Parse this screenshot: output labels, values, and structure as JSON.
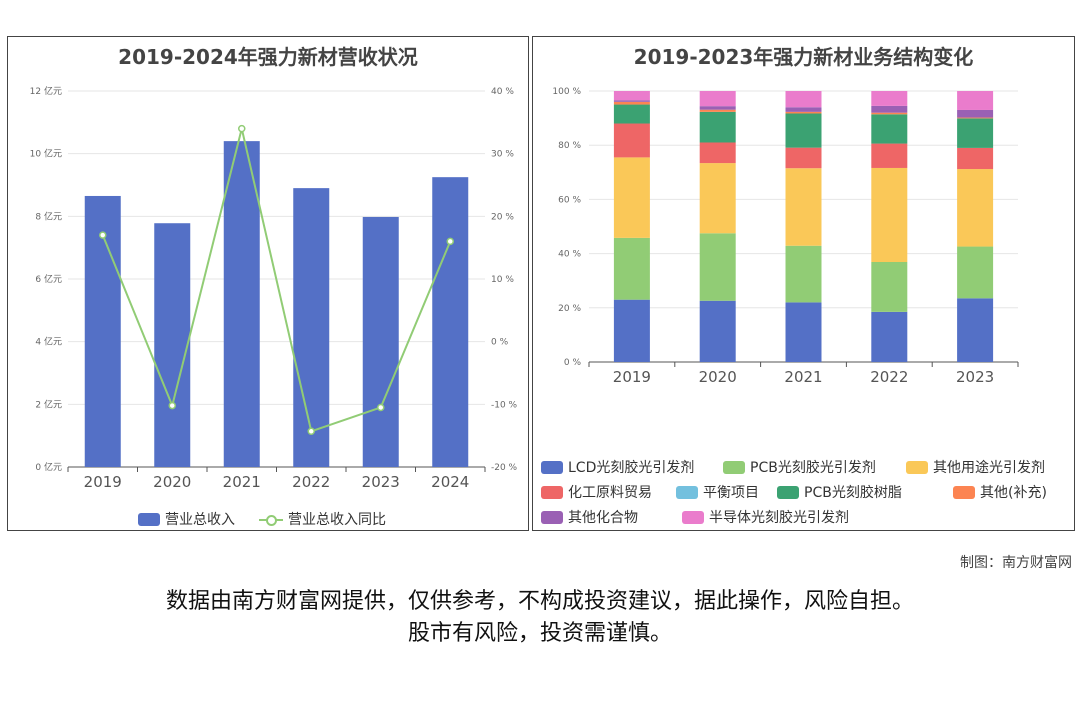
{
  "left_panel": {
    "title": "2019-2024年强力新材营收状况",
    "legend": {
      "bar": "营业总收入",
      "line": "营业总收入同比"
    }
  },
  "right_panel": {
    "title": "2019-2023年强力新材业务结构变化"
  },
  "credit": "制图：南方财富网",
  "disclaimer_line1": "数据由南方财富网提供，仅供参考，不构成投资建议，据此操作，风险自担。",
  "disclaimer_line2": "股市有风险，投资需谨慎。",
  "colors": {
    "bar": "#5470c6",
    "line": "#91cc75"
  },
  "chart_data": [
    {
      "type": "bar",
      "title": "2019-2024年强力新材营收状况",
      "categories": [
        "2019",
        "2020",
        "2021",
        "2022",
        "2023",
        "2024"
      ],
      "y_ticks": [
        "0 亿元",
        "2 亿元",
        "4 亿元",
        "6 亿元",
        "8 亿元",
        "10 亿元",
        "12 亿元"
      ],
      "y2_ticks": [
        "-20 %",
        "-10 %",
        "0 %",
        "10 %",
        "20 %",
        "30 %",
        "40 %"
      ],
      "ylim": [
        0,
        12
      ],
      "y2lim": [
        -20,
        40
      ],
      "grid": true,
      "legend_position": "bottom",
      "series": [
        {
          "name": "营业总收入",
          "type": "bar",
          "axis": "left",
          "color": "#5470c6",
          "values": [
            8.65,
            7.78,
            10.4,
            8.9,
            7.98,
            9.25
          ]
        },
        {
          "name": "营业总收入同比",
          "type": "line",
          "axis": "right",
          "color": "#91cc75",
          "values": [
            17,
            -10.2,
            34,
            -14.3,
            -10.5,
            16
          ]
        }
      ]
    },
    {
      "type": "bar",
      "stacked": true,
      "title": "2019-2023年强力新材业务结构变化",
      "categories": [
        "2019",
        "2020",
        "2021",
        "2022",
        "2023"
      ],
      "y_ticks": [
        "0 %",
        "20 %",
        "40 %",
        "60 %",
        "80 %",
        "100 %"
      ],
      "ylim": [
        0,
        100
      ],
      "legend_position": "bottom",
      "series": [
        {
          "name": "LCD光刻胶光引发剂",
          "color": "#5470c6",
          "values": [
            23,
            22.6,
            22,
            18.5,
            23.5
          ]
        },
        {
          "name": "PCB光刻胶光引发剂",
          "color": "#91cc75",
          "values": [
            22.8,
            24.9,
            20.9,
            18.4,
            19.1
          ]
        },
        {
          "name": "其他用途光引发剂",
          "color": "#fac858",
          "values": [
            29.7,
            25.9,
            28.6,
            34.7,
            28.6
          ]
        },
        {
          "name": "化工原料贸易",
          "color": "#ee6666",
          "values": [
            12.5,
            7.6,
            7.6,
            9,
            7.8
          ]
        },
        {
          "name": "平衡项目",
          "color": "#73c0de",
          "values": [
            0,
            0,
            0,
            0,
            0
          ]
        },
        {
          "name": "PCB光刻胶树脂",
          "color": "#3ba272",
          "values": [
            7,
            11.3,
            12.6,
            10.8,
            10.9
          ]
        },
        {
          "name": "其他(补充)",
          "color": "#fc8452",
          "values": [
            1,
            0.8,
            0.6,
            0.6,
            0.3
          ]
        },
        {
          "name": "其他化合物",
          "color": "#9a60b4",
          "values": [
            0.6,
            1.3,
            1.7,
            2.5,
            2.8
          ]
        },
        {
          "name": "半导体光刻胶光引发剂",
          "color": "#ea7ccc",
          "values": [
            3.4,
            5.6,
            6,
            5.5,
            7
          ]
        }
      ]
    }
  ]
}
